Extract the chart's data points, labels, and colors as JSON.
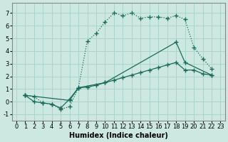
{
  "xlabel": "Humidex (Indice chaleur)",
  "bg_color": "#cce8e0",
  "grid_color": "#aad4cc",
  "line_color": "#1a6b5a",
  "xlim": [
    -0.5,
    23.5
  ],
  "ylim": [
    -1.5,
    7.8
  ],
  "xticks": [
    0,
    1,
    2,
    3,
    4,
    5,
    6,
    7,
    8,
    9,
    10,
    11,
    12,
    13,
    14,
    15,
    16,
    17,
    18,
    19,
    20,
    21,
    22,
    23
  ],
  "yticks": [
    -1,
    0,
    1,
    2,
    3,
    4,
    5,
    6,
    7
  ],
  "line1_x": [
    1,
    2,
    3,
    4,
    5,
    6,
    7,
    8,
    9,
    10,
    11,
    12,
    13,
    14,
    15,
    16,
    17,
    18,
    19,
    20,
    21,
    22
  ],
  "line1_y": [
    0.5,
    0.4,
    -0.1,
    -0.2,
    -0.6,
    -0.4,
    1.1,
    4.8,
    5.4,
    6.3,
    7.0,
    6.8,
    7.0,
    6.6,
    6.7,
    6.7,
    6.6,
    6.8,
    6.5,
    4.3,
    3.4,
    2.6
  ],
  "line2_x": [
    1,
    6,
    7,
    10,
    18,
    19,
    22
  ],
  "line2_y": [
    0.5,
    0.1,
    1.1,
    1.5,
    4.7,
    3.1,
    2.1
  ],
  "line3_x": [
    1,
    2,
    3,
    4,
    5,
    6,
    7,
    8,
    9,
    10,
    11,
    12,
    13,
    14,
    15,
    16,
    17,
    18,
    19,
    20,
    21,
    22
  ],
  "line3_y": [
    0.5,
    0.0,
    -0.1,
    -0.2,
    -0.5,
    0.2,
    1.1,
    1.15,
    1.3,
    1.5,
    1.7,
    1.9,
    2.1,
    2.3,
    2.5,
    2.7,
    2.9,
    3.1,
    2.5,
    2.5,
    2.2,
    2.1
  ],
  "xlabel_fontsize": 7,
  "tick_fontsize": 6
}
